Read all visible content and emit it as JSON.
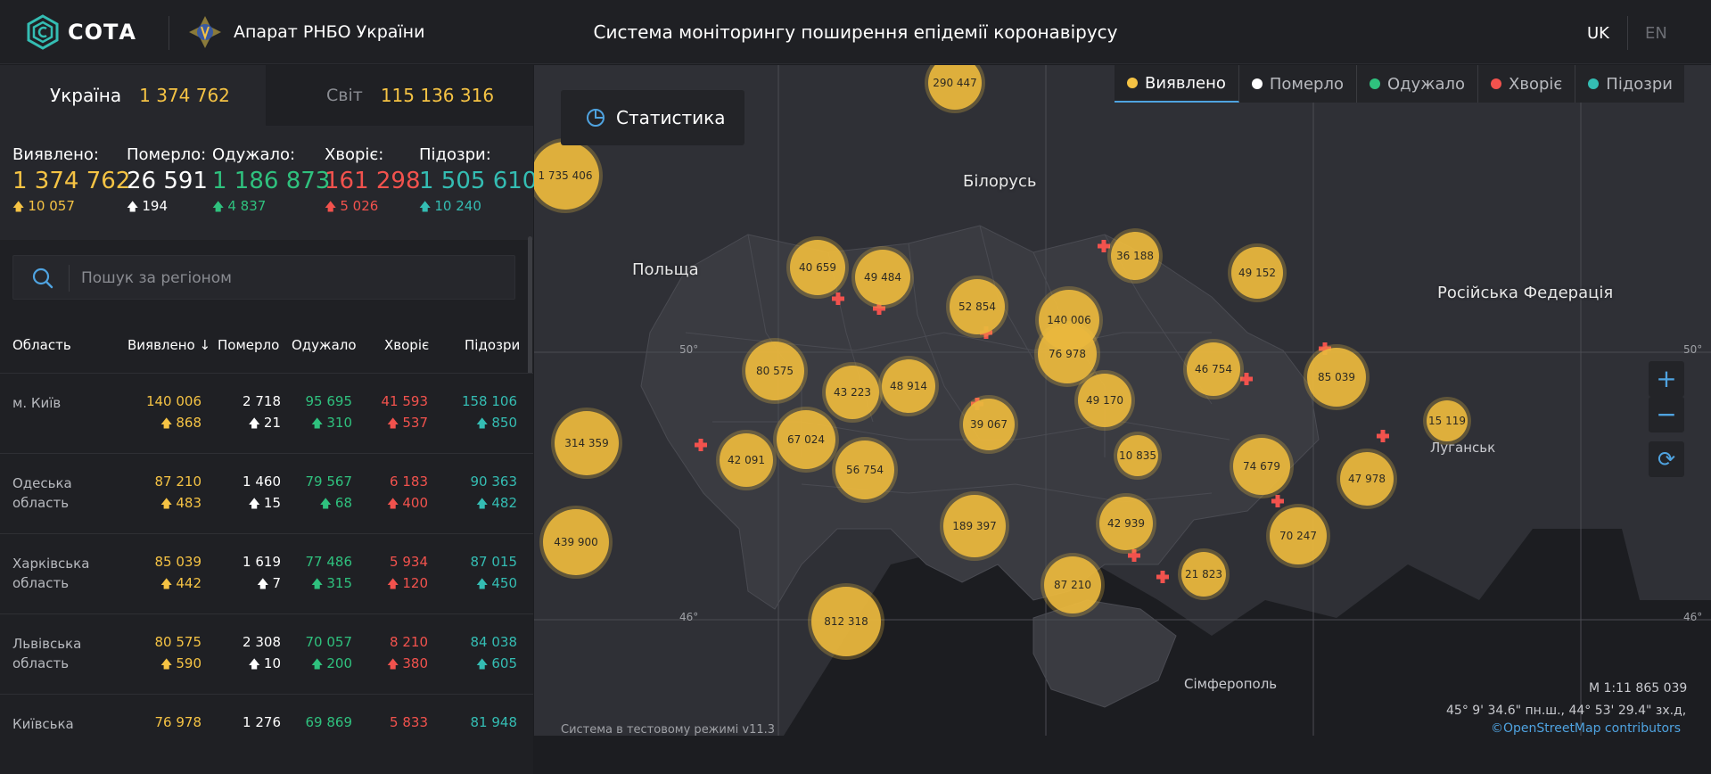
{
  "header": {
    "logo_text": "СОТА",
    "org_name": "Апарат РНБО України",
    "title": "Система моніторингу поширення епідемії коронавірусу",
    "lang_uk": "UK",
    "lang_en": "EN"
  },
  "scope": {
    "ukraine_label": "Україна",
    "ukraine_value": "1 374 762",
    "world_label": "Світ",
    "world_value": "115 136 316"
  },
  "totals": [
    {
      "label": "Виявлено:",
      "value": "1 374 762",
      "delta": "10 057",
      "color": "#f5c344"
    },
    {
      "label": "Померло:",
      "value": "26 591",
      "delta": "194",
      "color": "#ffffff"
    },
    {
      "label": "Одужало:",
      "value": "1 186 873",
      "delta": "4 837",
      "color": "#2fc17e"
    },
    {
      "label": "Хворіє:",
      "value": "161 298",
      "delta": "5 026",
      "color": "#f2524d"
    },
    {
      "label": "Підозри:",
      "value": "1 505 610",
      "delta": "10 240",
      "color": "#34bdb3"
    }
  ],
  "search": {
    "placeholder": "Пошук за регіоном"
  },
  "table": {
    "headers": {
      "region": "Область",
      "detected": "Виявлено",
      "sort_arrow": "↓",
      "died": "Померло",
      "recovered": "Одужало",
      "sick": "Хворіє",
      "suspected": "Підозри"
    },
    "rows": [
      {
        "region": "м. Київ",
        "detected": "140 006",
        "detected_d": "868",
        "died": "2 718",
        "died_d": "21",
        "recovered": "95 695",
        "recovered_d": "310",
        "sick": "41 593",
        "sick_d": "537",
        "suspected": "158 106",
        "suspected_d": "850"
      },
      {
        "region": "Одеська область",
        "detected": "87 210",
        "detected_d": "483",
        "died": "1 460",
        "died_d": "15",
        "recovered": "79 567",
        "recovered_d": "68",
        "sick": "6 183",
        "sick_d": "400",
        "suspected": "90 363",
        "suspected_d": "482"
      },
      {
        "region": "Харківська область",
        "detected": "85 039",
        "detected_d": "442",
        "died": "1 619",
        "died_d": "7",
        "recovered": "77 486",
        "recovered_d": "315",
        "sick": "5 934",
        "sick_d": "120",
        "suspected": "87 015",
        "suspected_d": "450"
      },
      {
        "region": "Львівська область",
        "detected": "80 575",
        "detected_d": "590",
        "died": "2 308",
        "died_d": "10",
        "recovered": "70 057",
        "recovered_d": "200",
        "sick": "8 210",
        "sick_d": "380",
        "suspected": "84 038",
        "suspected_d": "605"
      },
      {
        "region": "Київська",
        "detected": "76 978",
        "detected_d": "",
        "died": "1 276",
        "died_d": "",
        "recovered": "69 869",
        "recovered_d": "",
        "sick": "5 833",
        "sick_d": "",
        "suspected": "81 948",
        "suspected_d": ""
      }
    ]
  },
  "map": {
    "stats_button": "Статистика",
    "legend": [
      {
        "label": "Виявлено",
        "color": "#f5c344",
        "active": true
      },
      {
        "label": "Померло",
        "color": "#ffffff",
        "active": false
      },
      {
        "label": "Одужало",
        "color": "#2fc17e",
        "active": false
      },
      {
        "label": "Хворіє",
        "color": "#f2524d",
        "active": false
      },
      {
        "label": "Підозри",
        "color": "#34bdb3",
        "active": false
      }
    ],
    "countries": [
      "Білорусь",
      "Польща",
      "Російська Федерація"
    ],
    "cities": [
      "Луганськ",
      "Сімферополь"
    ],
    "lat_50": "50°",
    "lat_46": "46°",
    "zoom_in": "+",
    "zoom_out": "−",
    "reset": "⟳",
    "scale": "М 1:11 865 039",
    "coords": "45° 9' 34.6\" пн.ш., 44° 53' 29.4\" зх.д,",
    "attribution": "©OpenStreetMap contributors",
    "footer_note": "Система в тестовому режимі v11.3",
    "clusters": [
      "290 447",
      "1 735 406",
      "40 659",
      "49 484",
      "52 854",
      "140 006",
      "36 188",
      "49 152",
      "80 575",
      "43 223",
      "48 914",
      "76 978",
      "46 754",
      "85 039",
      "314 359",
      "42 091",
      "67 024",
      "56 754",
      "39 067",
      "49 170",
      "10 835",
      "74 679",
      "15 119",
      "47 978",
      "439 900",
      "189 397",
      "42 939",
      "70 247",
      "87 210",
      "21 823",
      "812 318"
    ]
  }
}
